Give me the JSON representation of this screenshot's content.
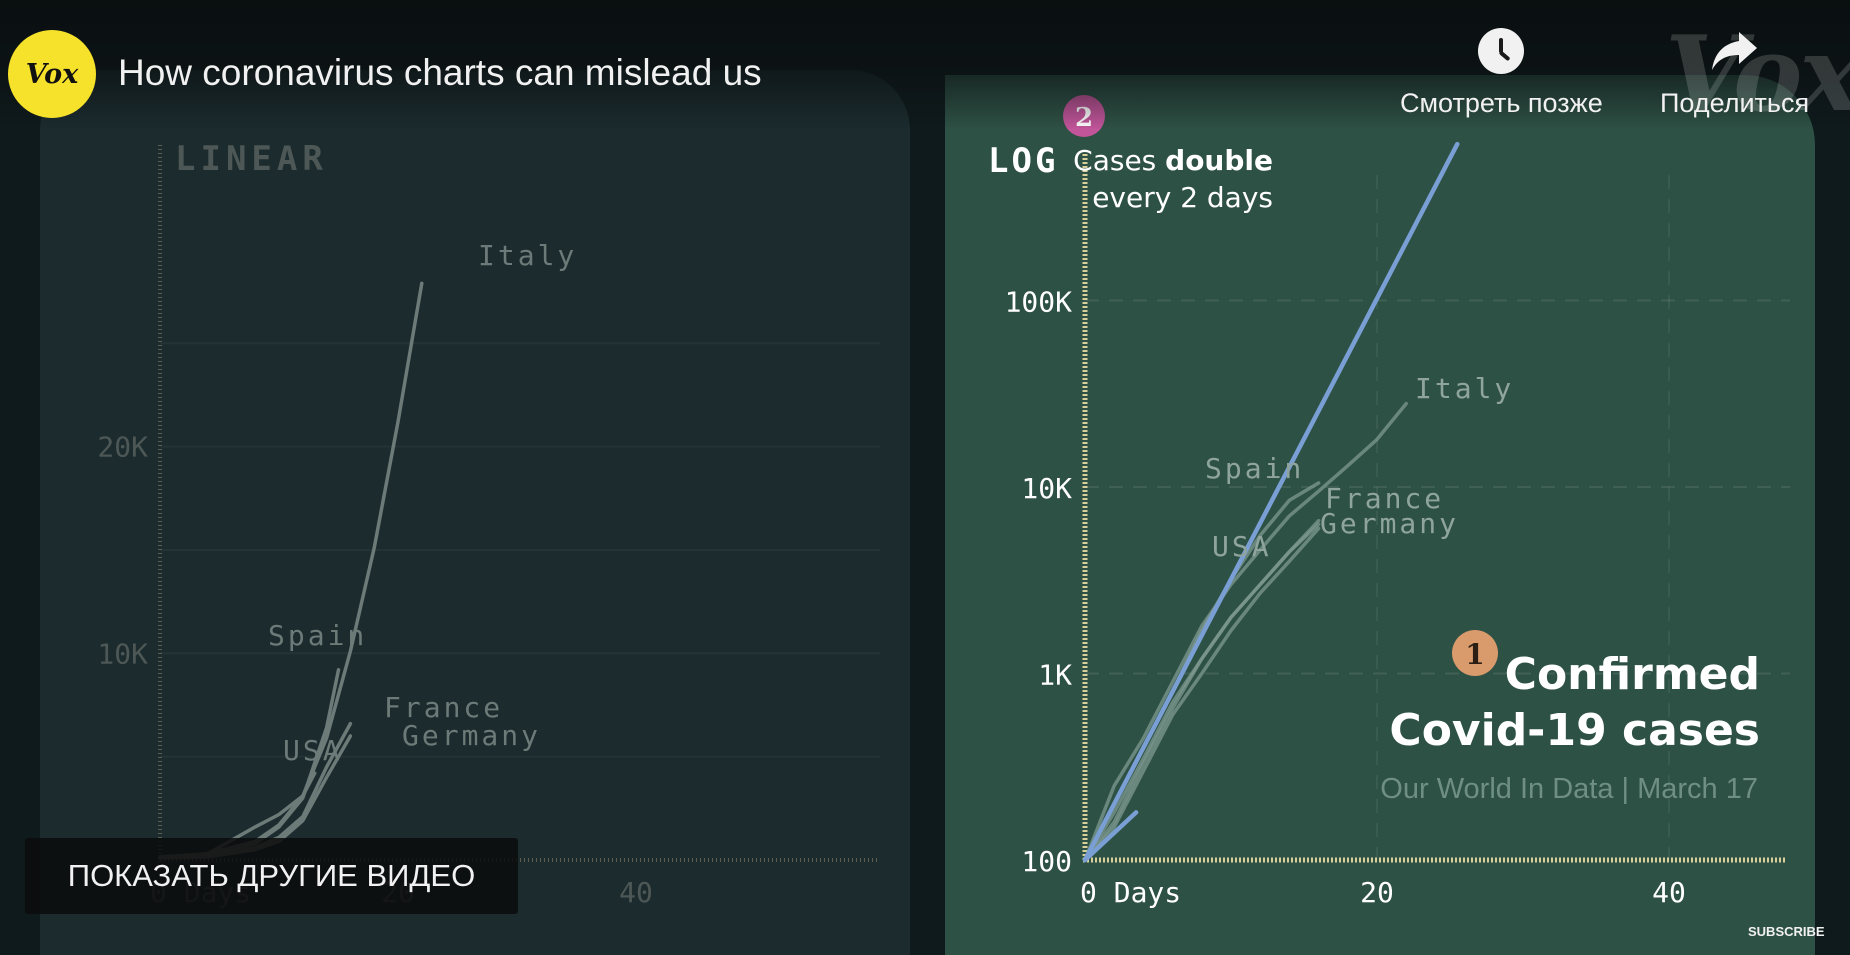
{
  "video": {
    "title": "How coronavirus charts can mislead us",
    "channel_logo_text": "Vox",
    "watermark": "Vox"
  },
  "actions": {
    "watch_later": "Смотреть позже",
    "share": "Поделиться"
  },
  "overlay": {
    "more_videos": "ПОКАЗАТЬ ДРУГИЕ ВИДЕО",
    "subscribe": "SUBSCRIBE"
  },
  "chart_data": [
    {
      "type": "line",
      "title": "LINEAR",
      "scale": "linear",
      "xlim": [
        0,
        50
      ],
      "ylim": [
        0,
        30000
      ],
      "x_ticks": [
        {
          "value": 0,
          "label": "0 Days"
        },
        {
          "value": 20,
          "label": "20"
        },
        {
          "value": 40,
          "label": "40"
        }
      ],
      "y_ticks": [
        {
          "value": 10000,
          "label": "10K"
        },
        {
          "value": 20000,
          "label": "20K"
        }
      ],
      "series": [
        {
          "name": "Italy",
          "x": [
            0,
            4,
            8,
            10,
            12,
            14,
            16,
            18,
            20,
            22
          ],
          "y": [
            150,
            300,
            900,
            1700,
            3100,
            5900,
            10100,
            15100,
            21200,
            27900
          ]
        },
        {
          "name": "Spain",
          "x": [
            0,
            4,
            8,
            10,
            12,
            14,
            15
          ],
          "y": [
            100,
            250,
            800,
            1600,
            3000,
            6400,
            9200
          ]
        },
        {
          "name": "USA",
          "x": [
            0,
            4,
            8,
            10,
            12,
            13
          ],
          "y": [
            100,
            300,
            1600,
            2200,
            3100,
            4200
          ]
        },
        {
          "name": "France",
          "x": [
            0,
            4,
            8,
            10,
            12,
            14,
            16
          ],
          "y": [
            100,
            200,
            600,
            1100,
            2100,
            4500,
            6600
          ]
        },
        {
          "name": "Germany",
          "x": [
            0,
            4,
            8,
            10,
            12,
            14,
            16
          ],
          "y": [
            100,
            150,
            500,
            900,
            1900,
            4000,
            6000
          ]
        }
      ],
      "label_offsets_days": {
        "Italy": 0,
        "Spain": 0
      }
    },
    {
      "type": "line",
      "title": "LOG",
      "scale": "log",
      "xlim": [
        0,
        48
      ],
      "ylim": [
        100,
        1000000
      ],
      "x_ticks": [
        {
          "value": 0,
          "label": "0 Days"
        },
        {
          "value": 20,
          "label": "20"
        },
        {
          "value": 40,
          "label": "40"
        }
      ],
      "y_ticks": [
        {
          "value": 100,
          "label": "100"
        },
        {
          "value": 1000,
          "label": "1K"
        },
        {
          "value": 10000,
          "label": "10K"
        },
        {
          "value": 100000,
          "label": "100K"
        }
      ],
      "series": [
        {
          "name": "Italy",
          "x": [
            0,
            2,
            4,
            6,
            8,
            10,
            12,
            14,
            16,
            18,
            20,
            22
          ],
          "y": [
            100,
            250,
            450,
            900,
            1800,
            3000,
            4600,
            7000,
            9500,
            13000,
            18000,
            28000
          ]
        },
        {
          "name": "Spain",
          "x": [
            0,
            2,
            4,
            6,
            8,
            10,
            12,
            14,
            16
          ],
          "y": [
            100,
            200,
            400,
            800,
            1700,
            3200,
            5500,
            8500,
            10500
          ]
        },
        {
          "name": "USA",
          "x": [
            0,
            2,
            4,
            6,
            8,
            10,
            12,
            14,
            16
          ],
          "y": [
            100,
            160,
            330,
            650,
            1200,
            2000,
            3000,
            4500,
            6300
          ]
        },
        {
          "name": "France",
          "x": [
            0,
            2,
            4,
            6,
            8,
            10,
            12,
            14,
            16
          ],
          "y": [
            100,
            180,
            350,
            700,
            1200,
            2000,
            3000,
            4500,
            6600
          ]
        },
        {
          "name": "Germany",
          "x": [
            0,
            2,
            4,
            6,
            8,
            10,
            12,
            14,
            16
          ],
          "y": [
            100,
            150,
            300,
            600,
            1000,
            1700,
            2700,
            4000,
            6000
          ]
        },
        {
          "name": "Cases double every 2 days",
          "x": [
            0,
            25.5
          ],
          "y": [
            100,
            690000
          ]
        },
        {
          "name": "",
          "x": [
            0,
            3.5
          ],
          "y": [
            100,
            180
          ]
        }
      ],
      "annotations": {
        "doubling_prefix": "Cases ",
        "doubling_bold": "double",
        "doubling_line2": "every 2 days",
        "step1_number": "1",
        "step1_line1": "Confirmed",
        "step1_line2": "Covid-19 cases",
        "source": "Our World In Data | March 17",
        "step2_number": "2"
      }
    }
  ],
  "colors": {
    "linear_background": "#1b2b2e",
    "log_background": "#2e5145",
    "chalk_axis": "#d8cf9a",
    "country_line": "#8c9c9a",
    "doubling_line": "#7a9fd4",
    "badge_step1": "#d99a6c",
    "badge_step2": "#c2559a",
    "vox_yellow": "#f6e12b"
  }
}
